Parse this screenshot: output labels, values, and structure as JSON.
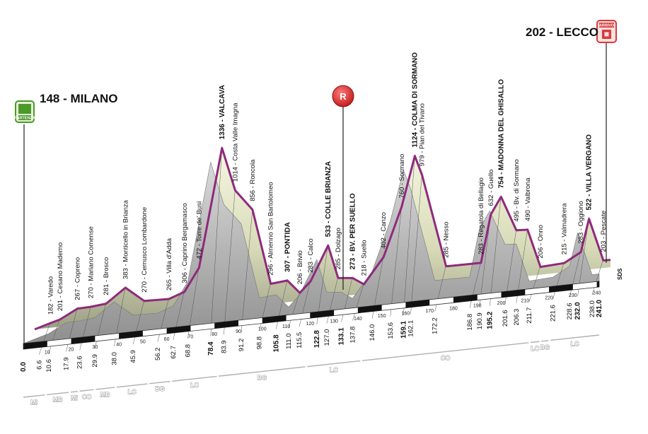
{
  "start": {
    "elevation": "148",
    "name": "MILANO",
    "icon_label": "PARTENZA"
  },
  "finish": {
    "elevation": "202",
    "name": "LECCO",
    "icon_label": "ARRIVO"
  },
  "feed_zone": {
    "label": "R"
  },
  "end_marker": "SDS",
  "colors": {
    "profile_line": "#8e2a7c",
    "profile_fill_top": "#f4f6dc",
    "profile_fill_bottom": "#a9ad8c",
    "base_dark": "#6f6f6f",
    "accent_start": "#4a9a2a",
    "accent_finish": "#d93a3a"
  },
  "profile": [
    [
      0,
      148
    ],
    [
      6.6,
      182
    ],
    [
      10.6,
      201
    ],
    [
      17.9,
      267
    ],
    [
      23.6,
      270
    ],
    [
      29.9,
      281
    ],
    [
      38.0,
      383
    ],
    [
      45.9,
      270
    ],
    [
      56.2,
      265
    ],
    [
      62.7,
      306
    ],
    [
      68.8,
      472
    ],
    [
      78.4,
      1336
    ],
    [
      83.9,
      1014
    ],
    [
      91.2,
      856
    ],
    [
      98.8,
      296
    ],
    [
      105.8,
      307
    ],
    [
      111.0,
      206
    ],
    [
      115.5,
      283
    ],
    [
      122.8,
      533
    ],
    [
      127.0,
      285
    ],
    [
      133.1,
      273
    ],
    [
      137.8,
      218
    ],
    [
      146.0,
      402
    ],
    [
      153.6,
      760
    ],
    [
      159.1,
      1124
    ],
    [
      162.1,
      979
    ],
    [
      172.2,
      285
    ],
    [
      186.8,
      283
    ],
    [
      190.9,
      632
    ],
    [
      195.2,
      754
    ],
    [
      201.6,
      495
    ],
    [
      206.3,
      490
    ],
    [
      211.7,
      206
    ],
    [
      221.6,
      215
    ],
    [
      228.6,
      283
    ],
    [
      232.0,
      522
    ],
    [
      238.0,
      203
    ],
    [
      241.0,
      202
    ]
  ],
  "points": [
    {
      "km": "6.6",
      "label": "182 - Varedo",
      "bold": false
    },
    {
      "km": "10.6",
      "label": "201 - Cesano Maderno",
      "bold": false
    },
    {
      "km": "17.9",
      "label": "267 - Copreno",
      "bold": false
    },
    {
      "km": "23.6",
      "label": "270 - Mariano Comense",
      "bold": false
    },
    {
      "km": "29.9",
      "label": "281 - Brosco",
      "bold": false
    },
    {
      "km": "38.0",
      "label": "383 - Monticello in Brianza",
      "bold": false
    },
    {
      "km": "45.9",
      "label": "270 - Cernusco Lombardone",
      "bold": false
    },
    {
      "km": "56.2",
      "label": "265 - Villa d'Adda",
      "bold": false
    },
    {
      "km": "62.7",
      "label": "306 - Caprino Bergamasco",
      "bold": false
    },
    {
      "km": "68.8",
      "label": "472 - Torre de' Busi",
      "bold": false
    },
    {
      "km": "78.4",
      "label": "1336 - VALCAVA",
      "bold": true
    },
    {
      "km": "83.9",
      "label": "1014 - Costa Valle Imagna",
      "bold": false
    },
    {
      "km": "91.2",
      "label": "856 - Roncola",
      "bold": false
    },
    {
      "km": "98.8",
      "label": "296 - Almenno San Bartolomeo",
      "bold": false
    },
    {
      "km": "105.8",
      "label": "307 - PONTIDA",
      "bold": true
    },
    {
      "km": "111.0",
      "label": "206 - Brivio",
      "bold": false
    },
    {
      "km": "115.5",
      "label": "283 - Calco",
      "bold": false
    },
    {
      "km": "122.8",
      "label": "533 - COLLE BRIANZA",
      "bold": true
    },
    {
      "km": "127.0",
      "label": "285 - Dolzago",
      "bold": false
    },
    {
      "km": "133.1",
      "label": "273 - BV. PER SUELLO",
      "bold": true
    },
    {
      "km": "137.8",
      "label": "218 - Suello",
      "bold": false
    },
    {
      "km": "146.0",
      "label": "402 - Canzo",
      "bold": false
    },
    {
      "km": "153.6",
      "label": "760 - Sormano",
      "bold": false
    },
    {
      "km": "159.1",
      "label": "1124 - COLMA DI SORMANO",
      "bold": true
    },
    {
      "km": "162.1",
      "label": "979 - Pian del Tivano",
      "bold": false
    },
    {
      "km": "172.2",
      "label": "285 - Nesso",
      "bold": false
    },
    {
      "km": "186.8",
      "label": "283 - Regatola di Bellagio",
      "bold": false
    },
    {
      "km": "190.9",
      "label": "632 - Guello",
      "bold": false
    },
    {
      "km": "195.2",
      "label": "754 - MADONNA DEL GHISALLO",
      "bold": true
    },
    {
      "km": "201.6",
      "label": "495 - Bv. di Sormano",
      "bold": false
    },
    {
      "km": "206.3",
      "label": "490 - Valbrona",
      "bold": false
    },
    {
      "km": "211.7",
      "label": "206 - Onno",
      "bold": false
    },
    {
      "km": "221.6",
      "label": "215 - Valmadrera",
      "bold": false
    },
    {
      "km": "228.6",
      "label": "283 - Oggiono",
      "bold": false
    },
    {
      "km": "232.0",
      "label": "522 - VILLA VERGANO",
      "bold": true
    },
    {
      "km": "238.0",
      "label": "203 - Pescate",
      "bold": false
    }
  ],
  "km_start": "0.0",
  "km_end": "241.0",
  "km_bold": [
    "0.0",
    "78.4",
    "105.8",
    "122.8",
    "133.1",
    "159.1",
    "195.2",
    "232.0",
    "241.0"
  ],
  "ticks": [
    "10",
    "20",
    "30",
    "40",
    "50",
    "60",
    "70",
    "80",
    "90",
    "100",
    "110",
    "120",
    "130",
    "140",
    "150",
    "160",
    "170",
    "180",
    "190",
    "200",
    "210",
    "220",
    "230",
    "240"
  ],
  "provinces": [
    {
      "code": "MI",
      "from": 0,
      "to": 9
    },
    {
      "code": "MB",
      "from": 9.8,
      "to": 19
    },
    {
      "code": "MI",
      "from": 19.8,
      "to": 22.8
    },
    {
      "code": "CO",
      "from": 23.6,
      "to": 29.5
    },
    {
      "code": "MB",
      "from": 30.3,
      "to": 38.2
    },
    {
      "code": "LC",
      "from": 39,
      "to": 52
    },
    {
      "code": "BG",
      "from": 52.8,
      "to": 61.5
    },
    {
      "code": "LC",
      "from": 62.3,
      "to": 81
    },
    {
      "code": "BG",
      "from": 81.8,
      "to": 118
    },
    {
      "code": "LC",
      "from": 118.8,
      "to": 141
    },
    {
      "code": "CO",
      "from": 141.8,
      "to": 211.5
    },
    {
      "code": "LC",
      "from": 212.3,
      "to": 216
    },
    {
      "code": "BG",
      "from": 216.8,
      "to": 219.8
    },
    {
      "code": "LC",
      "from": 220.6,
      "to": 241
    }
  ]
}
